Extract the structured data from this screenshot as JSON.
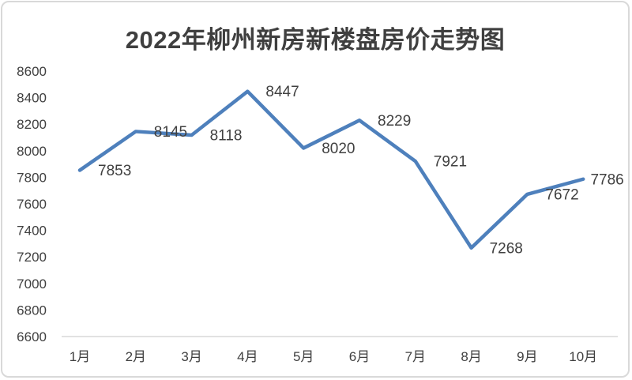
{
  "chart_data": {
    "type": "line",
    "title": "2022年柳州新房新楼盘房价走势图",
    "categories": [
      "1月",
      "2月",
      "3月",
      "4月",
      "5月",
      "6月",
      "7月",
      "8月",
      "9月",
      "10月"
    ],
    "series": [
      {
        "name": "新房房价",
        "values": [
          7853,
          8145,
          8118,
          8447,
          8020,
          8229,
          7921,
          7268,
          7672,
          7786
        ]
      }
    ],
    "data_labels": [
      "7853",
      "8145",
      "8118",
      "8447",
      "8020",
      "8229",
      "7921",
      "7268",
      "7672",
      "7786"
    ],
    "xlabel": "",
    "ylabel": "",
    "ylim": [
      6600,
      8600
    ],
    "y_ticks": [
      6600,
      6800,
      7000,
      7200,
      7400,
      7600,
      7800,
      8000,
      8200,
      8400,
      8600
    ],
    "grid": false,
    "legend_position": "none",
    "colors": {
      "line": "#4e80bc",
      "text": "#404040",
      "title": "#3f3f3f",
      "axis_line": "#d9d9d9",
      "frame_border": "#d9d9d9",
      "background": "#ffffff"
    }
  }
}
